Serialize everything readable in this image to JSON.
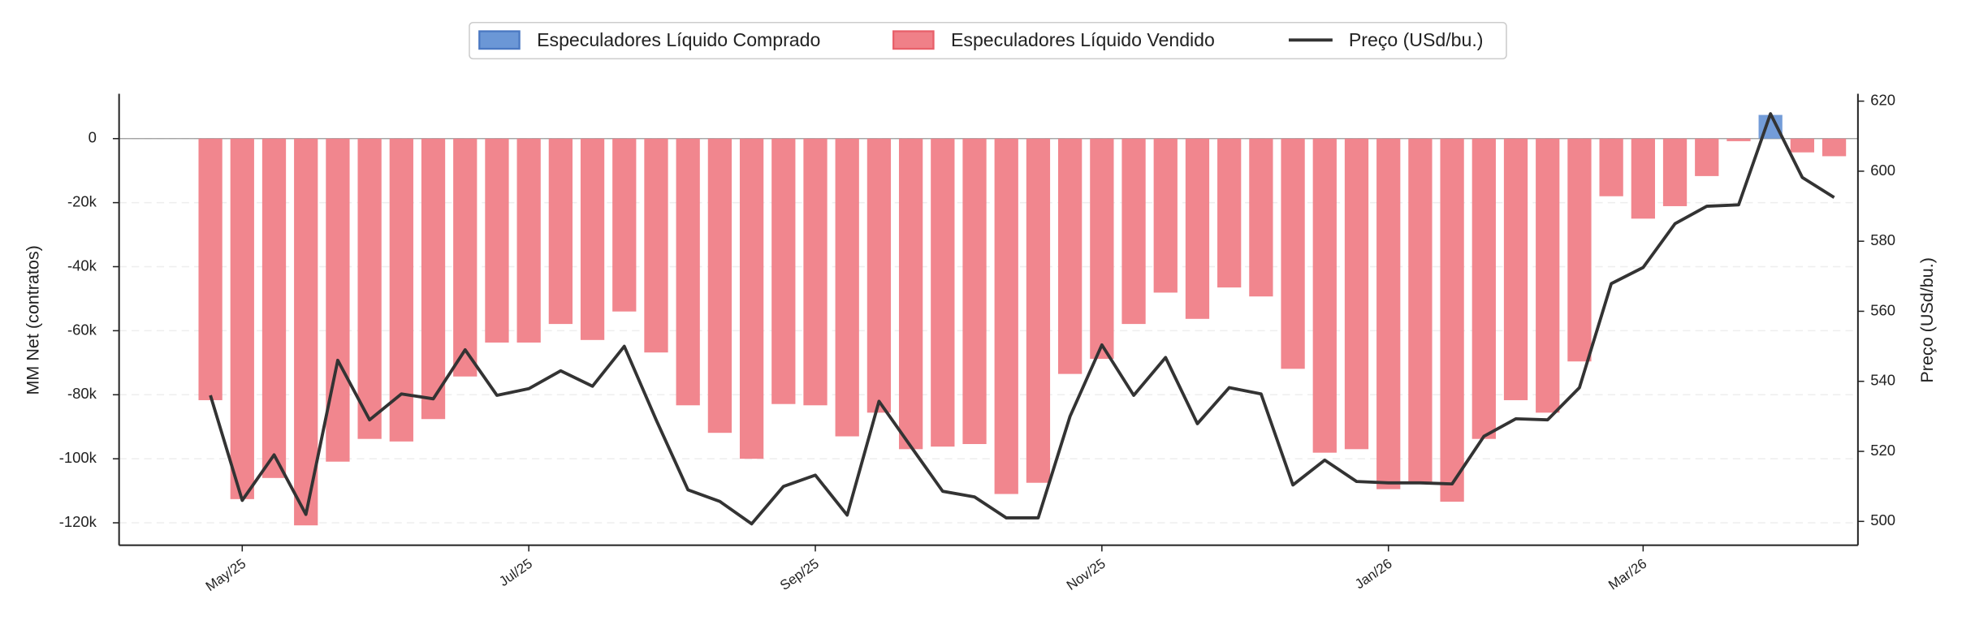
{
  "chart_data": {
    "type": "bar",
    "categories": [
      null,
      "May/25",
      null,
      null,
      null,
      null,
      null,
      null,
      null,
      null,
      "Jul/25",
      null,
      null,
      null,
      null,
      null,
      null,
      null,
      null,
      "Sep/25",
      null,
      null,
      null,
      null,
      null,
      null,
      null,
      null,
      "Nov/25",
      null,
      null,
      null,
      null,
      null,
      null,
      null,
      null,
      "Jan/26",
      null,
      null,
      null,
      null,
      null,
      null,
      null,
      "Mar/26",
      null,
      null,
      null,
      null,
      null,
      null
    ],
    "series": [
      {
        "name": "Especuladores Líquido Comprado",
        "type": "bar",
        "color": "#6b97d6",
        "edge": "#4a78c2",
        "values": [
          null,
          null,
          null,
          null,
          null,
          null,
          null,
          null,
          null,
          null,
          null,
          null,
          null,
          null,
          null,
          null,
          null,
          null,
          null,
          null,
          null,
          null,
          null,
          null,
          null,
          null,
          null,
          null,
          null,
          null,
          null,
          null,
          null,
          null,
          null,
          null,
          null,
          null,
          null,
          null,
          null,
          null,
          null,
          null,
          null,
          null,
          null,
          null,
          null,
          7400,
          null,
          null
        ]
      },
      {
        "name": "Especuladores Líquido Vendido",
        "type": "bar",
        "color": "#f08088",
        "edge": "#e8606a",
        "values": [
          -81700,
          -112600,
          -106000,
          -120800,
          -100900,
          -93800,
          -94600,
          -87600,
          -74300,
          -63700,
          -63700,
          -57900,
          -62900,
          -54000,
          -66800,
          -83300,
          -91900,
          -100000,
          -82900,
          -83300,
          -93000,
          -85600,
          -97000,
          -96200,
          -95400,
          -111000,
          -107500,
          -73500,
          -68800,
          -57900,
          -48100,
          -56300,
          -46500,
          -49300,
          -71900,
          -98100,
          -97000,
          -109500,
          -107500,
          -113400,
          -93800,
          -81700,
          -85600,
          -69600,
          -18000,
          -25000,
          -21100,
          -11700,
          -800,
          null,
          -4300,
          -5500
        ]
      },
      {
        "name": "Preço (USd/bu.)",
        "type": "line",
        "axis": "y2",
        "color": "#333333",
        "values": [
          536,
          506,
          519,
          502,
          546,
          529,
          536.4,
          535,
          549,
          536,
          537.9,
          543,
          538.6,
          550,
          529,
          509,
          505.7,
          499.3,
          510,
          513.2,
          501.8,
          534.3,
          521.4,
          508.6,
          507,
          501,
          501,
          530,
          550.4,
          536,
          546.8,
          527.9,
          538.2,
          536.4,
          510.4,
          517.5,
          511.4,
          511,
          511,
          510.7,
          524.3,
          529.3,
          529,
          538.2,
          567.9,
          572.5,
          585,
          590,
          590.4,
          616.4,
          598.2,
          592.5
        ]
      }
    ],
    "ylabel": "MM Net (contratos)",
    "y2label": "Preço (USd/bu.)",
    "ylim": [
      -127000,
      14000
    ],
    "yticks": [
      {
        "value": -120000,
        "label": "-120k"
      },
      {
        "value": -100000,
        "label": "-100k"
      },
      {
        "value": -80000,
        "label": "-80k"
      },
      {
        "value": -60000,
        "label": "-60k"
      },
      {
        "value": -40000,
        "label": "-40k"
      },
      {
        "value": -20000,
        "label": "-20k"
      },
      0
    ],
    "y2lim": [
      493.2,
      622.1
    ],
    "y2ticks": [
      500,
      520,
      540,
      560,
      580,
      600,
      620
    ],
    "grid": true,
    "legend": "top"
  }
}
